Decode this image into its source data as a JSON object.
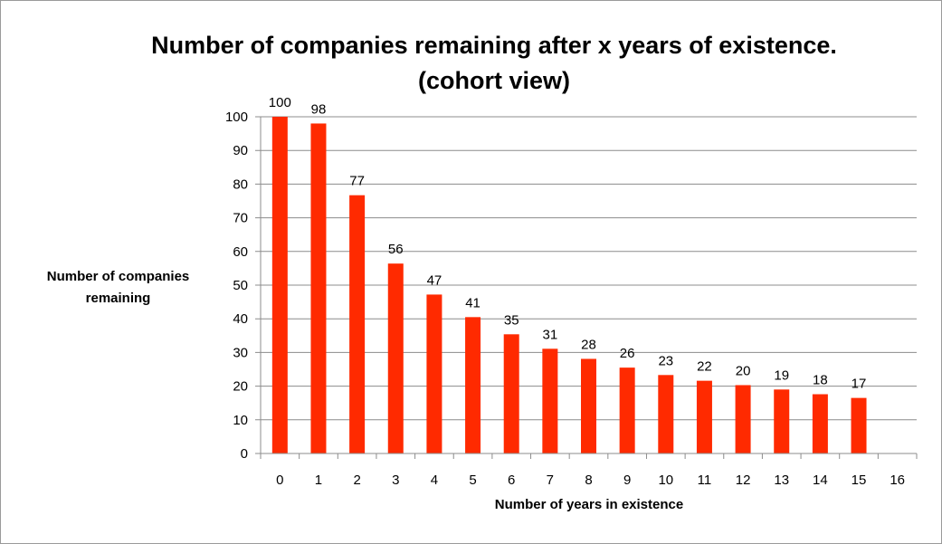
{
  "chart_data": {
    "type": "bar",
    "title_line1": "Number of companies remaining after x years of existence.",
    "title_line2": "(cohort view)",
    "xlabel": "Number of years in existence",
    "ylabel_line1": "Number of companies",
    "ylabel_line2": "remaining",
    "categories": [
      "0",
      "1",
      "2",
      "3",
      "4",
      "5",
      "6",
      "7",
      "8",
      "9",
      "10",
      "11",
      "12",
      "13",
      "14",
      "15",
      "16"
    ],
    "values": [
      100,
      98,
      77,
      56,
      47,
      41,
      35,
      31,
      28,
      26,
      23,
      22,
      20,
      19,
      18,
      17,
      null
    ],
    "bar_heights": [
      100,
      98,
      76.7,
      56.4,
      47.2,
      40.5,
      35.4,
      31.1,
      28.1,
      25.5,
      23.3,
      21.6,
      20.3,
      19,
      17.6,
      16.5,
      null
    ],
    "data_labels": [
      "100",
      "98",
      "77",
      "56",
      "47",
      "41",
      "35",
      "31",
      "28",
      "26",
      "23",
      "22",
      "20",
      "19",
      "18",
      "17",
      ""
    ],
    "ylim": [
      0,
      100
    ],
    "y_ticks": [
      0,
      10,
      20,
      30,
      40,
      50,
      60,
      70,
      80,
      90,
      100
    ],
    "grid": true,
    "legend": "none",
    "bar_color": "#ff2a00",
    "grid_color": "#8c8c8c"
  }
}
